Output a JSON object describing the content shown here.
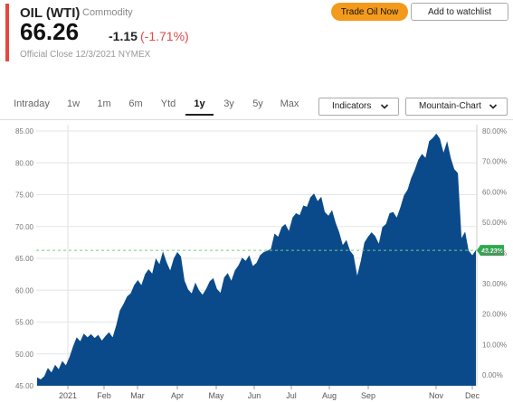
{
  "colors": {
    "accent": "#e8473c",
    "brand_orange": "#f39a1c",
    "area_fill": "#0a4a8a",
    "reference_line": "#6fcf7f",
    "badge_bg": "#2eaa4f",
    "negative": "#e04a4a"
  },
  "header": {
    "title": "OIL (WTI)",
    "subtitle": "Commodity",
    "price": "66.26",
    "change": "-1.15",
    "change_pct": "(-1.71%)",
    "close_info": "Official Close 12/3/2021  NYMEX"
  },
  "actions": {
    "trade_label": "Trade Oil Now",
    "watchlist_label": "Add to watchlist"
  },
  "ranges": {
    "tabs": [
      "Intraday",
      "1w",
      "1m",
      "6m",
      "Ytd",
      "1y",
      "3y",
      "5y",
      "Max"
    ],
    "active": "1y"
  },
  "controls": {
    "indicators_label": "Indicators",
    "chart_type_label": "Mountain-Chart",
    "chevron_icon": "chevron-down-icon"
  },
  "chart_data": {
    "type": "area",
    "title": "",
    "xlabel": "",
    "ylabel": "",
    "ylim": [
      45,
      86
    ],
    "y2lim": [
      -3.5,
      82
    ],
    "left_ticks": [
      "45.00",
      "50.00",
      "55.00",
      "60.00",
      "65.00",
      "70.00",
      "75.00",
      "80.00",
      "85.00"
    ],
    "right_ticks": [
      "0.00%",
      "10.00%",
      "20.00%",
      "30.00%",
      "40.00%",
      "50.00%",
      "60.00%",
      "70.00%",
      "80.00%"
    ],
    "x_ticks": [
      "2021",
      "Feb",
      "Mar",
      "Apr",
      "May",
      "Jun",
      "Jul",
      "Aug",
      "Sep",
      "Nov",
      "Dec"
    ],
    "reference_value": 66.26,
    "reference_label": "43.23%",
    "grid": true,
    "series": [
      {
        "values": [
          46.3,
          46.0,
          46.5,
          47.8,
          47.1,
          48.3,
          47.6,
          48.9,
          48.2,
          49.5,
          51.2,
          52.6,
          52.0,
          53.2,
          52.6,
          53.1,
          52.5,
          53.0,
          52.1,
          52.8,
          53.4,
          52.6,
          54.5,
          56.8,
          57.8,
          59.0,
          59.5,
          60.8,
          61.6,
          60.8,
          62.5,
          63.3,
          62.6,
          65.0,
          64.1,
          66.1,
          64.4,
          63.1,
          65.0,
          66.0,
          65.3,
          61.5,
          60.1,
          59.5,
          61.2,
          60.0,
          59.3,
          60.2,
          61.4,
          61.9,
          60.2,
          59.6,
          62.0,
          62.7,
          61.5,
          63.1,
          63.9,
          65.1,
          64.6,
          65.5,
          63.8,
          64.3,
          65.5,
          66.0,
          66.2,
          66.5,
          68.9,
          68.4,
          69.9,
          70.4,
          69.3,
          71.4,
          72.1,
          71.8,
          73.3,
          73.1,
          74.6,
          75.2,
          74.0,
          74.7,
          72.3,
          71.7,
          72.6,
          70.6,
          69.1,
          67.1,
          67.9,
          66.2,
          65.5,
          62.3,
          64.6,
          67.5,
          68.4,
          69.1,
          68.5,
          67.3,
          69.9,
          70.4,
          72.1,
          72.3,
          71.4,
          73.0,
          74.9,
          75.8,
          77.6,
          78.9,
          80.5,
          81.4,
          80.8,
          83.4,
          83.9,
          84.6,
          83.8,
          81.6,
          83.4,
          80.8,
          79.0,
          78.4,
          68.2,
          69.2,
          66.2,
          65.5,
          66.3
        ]
      }
    ]
  }
}
